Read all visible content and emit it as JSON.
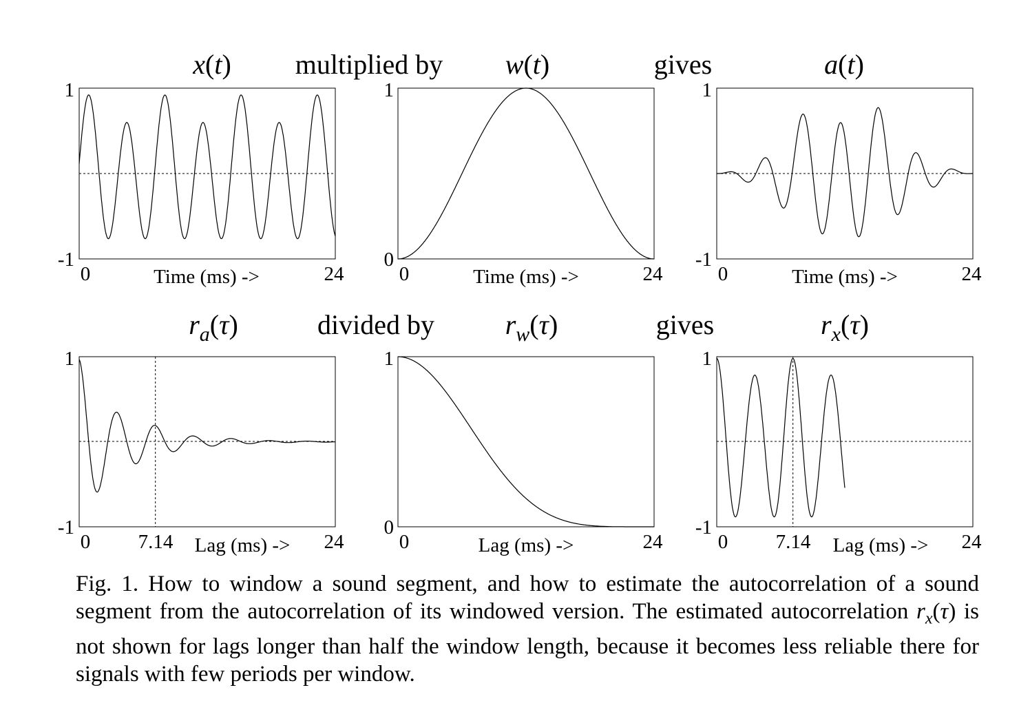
{
  "panels": [
    {
      "id": "x_t",
      "title": {
        "main": "x",
        "sub": "",
        "arg": "t"
      },
      "y_ticks": {
        "top": "1",
        "bottom": "-1"
      },
      "x_ticks": {
        "left": "0",
        "right": "24",
        "mid": ""
      },
      "x_label": "Time (ms) ->",
      "chart_data": {
        "type": "line",
        "xlim": [
          0,
          24
        ],
        "ylim": [
          -1,
          1
        ],
        "zero_line": true,
        "function": "sum of two sinusoids, peaks alternate about 0.84 and 0.55"
      }
    },
    {
      "id": "w_t",
      "title": {
        "main": "w",
        "sub": "",
        "arg": "t"
      },
      "y_ticks": {
        "top": "1",
        "bottom": "0"
      },
      "x_ticks": {
        "left": "0",
        "right": "24",
        "mid": ""
      },
      "x_label": "Time (ms) ->",
      "chart_data": {
        "type": "line",
        "xlim": [
          0,
          24
        ],
        "ylim": [
          0,
          1
        ],
        "zero_line": false,
        "function": "Hanning window, peak 1 at 12 ms"
      }
    },
    {
      "id": "a_t",
      "title": {
        "main": "a",
        "sub": "",
        "arg": "t"
      },
      "y_ticks": {
        "top": "1",
        "bottom": "-1"
      },
      "x_ticks": {
        "left": "0",
        "right": "24",
        "mid": ""
      },
      "x_label": "Time (ms) ->",
      "chart_data": {
        "type": "line",
        "xlim": [
          0,
          24
        ],
        "ylim": [
          -1,
          1
        ],
        "zero_line": true,
        "function": "x(t) multiplied by w(t)"
      }
    },
    {
      "id": "r_a",
      "title": {
        "main": "r",
        "sub": "a",
        "arg": "τ"
      },
      "y_ticks": {
        "top": "1",
        "bottom": "-1"
      },
      "x_ticks": {
        "left": "0",
        "right": "24",
        "mid": "7.14"
      },
      "x_label": "Lag (ms) ->",
      "chart_data": {
        "type": "line",
        "xlim": [
          0,
          24
        ],
        "ylim": [
          -1,
          1
        ],
        "zero_line": true,
        "marker_x": 7.14,
        "function": "damped oscillation starting at 1, period 7.14 ms"
      }
    },
    {
      "id": "r_w",
      "title": {
        "main": "r",
        "sub": "w",
        "arg": "τ"
      },
      "y_ticks": {
        "top": "1",
        "bottom": "0"
      },
      "x_ticks": {
        "left": "0",
        "right": "24",
        "mid": ""
      },
      "x_label": "Lag (ms) ->",
      "chart_data": {
        "type": "line",
        "xlim": [
          0,
          24
        ],
        "ylim": [
          0,
          1
        ],
        "zero_line": false,
        "function": "monotone decay from 1 at 0 ms to 0 at 24 ms"
      }
    },
    {
      "id": "r_x",
      "title": {
        "main": "r",
        "sub": "x",
        "arg": "τ"
      },
      "y_ticks": {
        "top": "1",
        "bottom": "-1"
      },
      "x_ticks": {
        "left": "0",
        "right": "24",
        "mid": "7.14"
      },
      "x_label": "Lag (ms) ->",
      "chart_data": {
        "type": "line",
        "xlim": [
          0,
          24
        ],
        "ylim": [
          -1,
          1
        ],
        "zero_line": true,
        "marker_x": 7.14,
        "shown_until": 12,
        "function": "r_a divided by r_w, shown for lags up to 12 ms"
      }
    }
  ],
  "connectors": {
    "row1": {
      "first": "multiplied by",
      "second": "gives"
    },
    "row2": {
      "first": "divided by",
      "second": "gives"
    }
  },
  "caption": {
    "before": "Fig. 1. How to window a sound segment, and how to estimate the autocorrelation of a sound segment from the autocorrelation of its windowed version. The estimated autocorrelation ",
    "sym_main": "r",
    "sym_sub": "x",
    "sym_open": "(",
    "sym_arg": "τ",
    "sym_close": ")",
    "after": " is not shown for lags longer than half the window length, because it becomes less reliable there for signals with few periods per window."
  },
  "colors": {
    "ink": "#000000",
    "background": "#ffffff"
  }
}
